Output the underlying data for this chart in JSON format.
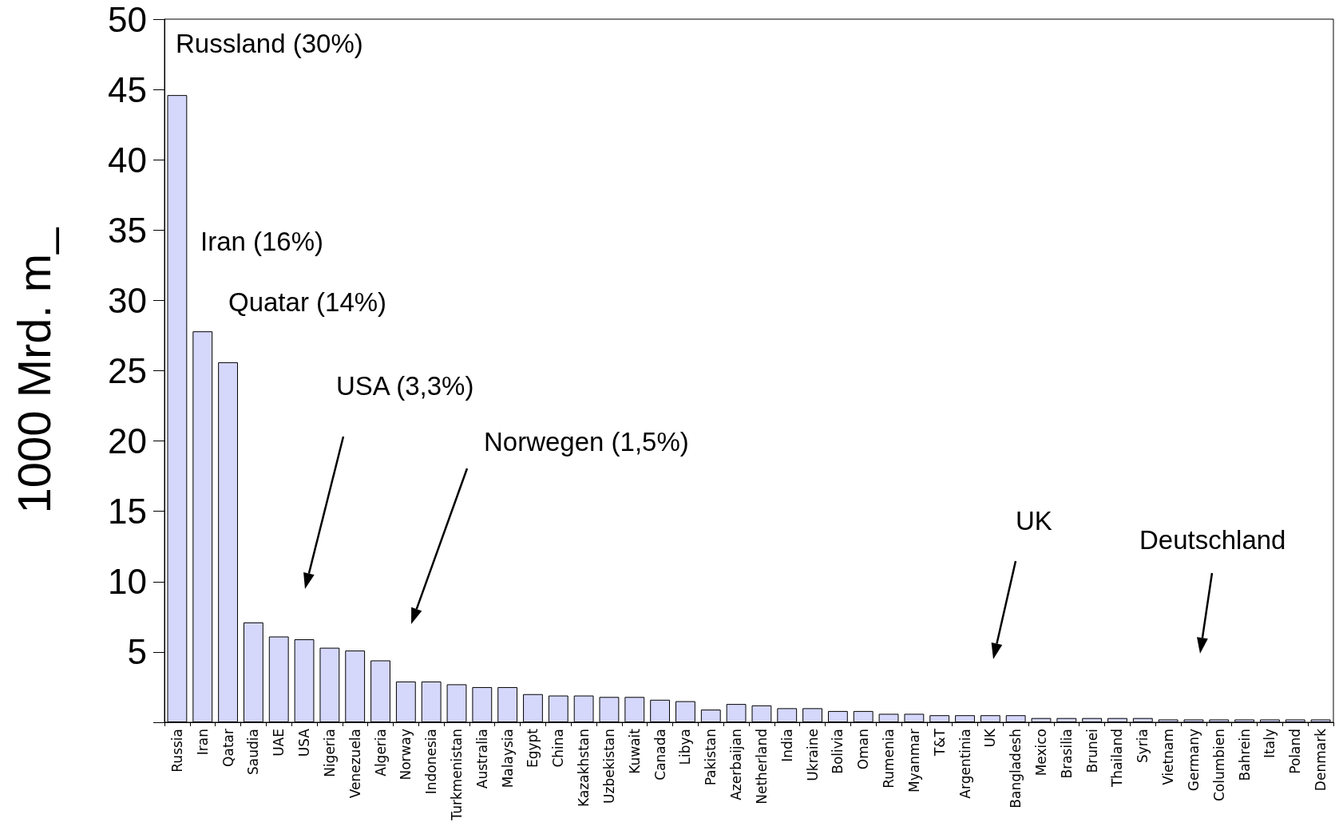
{
  "chart_data": {
    "type": "bar",
    "ylabel": "1000 Mrd. m_",
    "categories": [
      "Russia",
      "Iran",
      "Qatar",
      "Saudia",
      "UAE",
      "USA",
      "Nigeria",
      "Venezuela",
      "Algeria",
      "Norway",
      "Indonesia",
      "Turkmenistan",
      "Australia",
      "Malaysia",
      "Egypt",
      "China",
      "Kazakhstan",
      "Uzbekistan",
      "Kuwait",
      "Canada",
      "Libya",
      "Pakistan",
      "Azerbaijan",
      "Netherland",
      "India",
      "Ukraine",
      "Bolivia",
      "Oman",
      "Rumenia",
      "Myanmar",
      "T&T",
      "Argentinia",
      "UK",
      "Bangladesh",
      "Mexico",
      "Brasilia",
      "Brunei",
      "Thailand",
      "Syria",
      "Vietnam",
      "Germany",
      "Columbien",
      "Bahrein",
      "Italy",
      "Poland",
      "Denmark"
    ],
    "values": [
      44.6,
      27.8,
      25.6,
      7.1,
      6.1,
      5.9,
      5.3,
      5.1,
      4.4,
      2.9,
      2.9,
      2.7,
      2.5,
      2.5,
      2.0,
      1.9,
      1.9,
      1.8,
      1.8,
      1.6,
      1.5,
      0.9,
      1.3,
      1.2,
      1.0,
      1.0,
      0.8,
      0.8,
      0.6,
      0.6,
      0.5,
      0.5,
      0.5,
      0.5,
      0.3,
      0.3,
      0.3,
      0.3,
      0.3,
      0.2,
      0.2,
      0.2,
      0.2,
      0.2,
      0.2,
      0.2
    ],
    "color": "#d5d7fb",
    "ylim": [
      0,
      50
    ],
    "yticks": [
      {
        "value": 0,
        "label": null
      },
      5,
      10,
      15,
      20,
      25,
      30,
      35,
      40,
      45,
      50
    ],
    "annotations": [
      "Russland (30%)",
      "Iran (16%)",
      "Quatar (14%)",
      "USA (3,3%)",
      "Norwegen (1,5%)",
      "UK",
      "Deutschland"
    ]
  }
}
